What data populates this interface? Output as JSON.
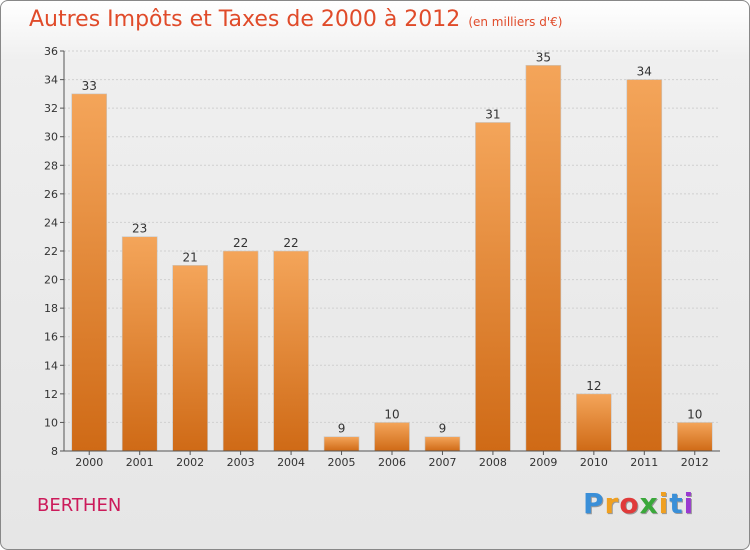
{
  "title": "Autres Impôts et Taxes de 2000 à 2012",
  "subtitle": "(en milliers d'€)",
  "place": "BERTHEN",
  "logo": {
    "letters": [
      "P",
      "r",
      "o",
      "x",
      "i",
      "t",
      "i"
    ],
    "colors": [
      "#3a8fd8",
      "#f0a020",
      "#e03a3a",
      "#3aa83a",
      "#f0a020",
      "#3a8fd8",
      "#9a3ad0"
    ]
  },
  "colors": {
    "bar_top": "#f4a55a",
    "bar_bottom": "#cf6a16",
    "title": "#e04b2a",
    "place": "#cc1a5a"
  },
  "chart_data": {
    "type": "bar",
    "categories": [
      "2000",
      "2001",
      "2002",
      "2003",
      "2004",
      "2005",
      "2006",
      "2007",
      "2008",
      "2009",
      "2010",
      "2011",
      "2012"
    ],
    "values": [
      33,
      23,
      21,
      22,
      22,
      9,
      10,
      9,
      31,
      35,
      12,
      34,
      10
    ],
    "value_labels": [
      "33",
      "23",
      "21",
      "22",
      "22",
      "9",
      "10",
      "9",
      "31",
      "35",
      "12",
      "34",
      "10"
    ],
    "ylim": [
      8,
      36
    ],
    "yticks": [
      "8",
      "10",
      "12",
      "14",
      "16",
      "18",
      "20",
      "22",
      "24",
      "26",
      "28",
      "30",
      "32",
      "34",
      "36"
    ],
    "grid": true
  }
}
